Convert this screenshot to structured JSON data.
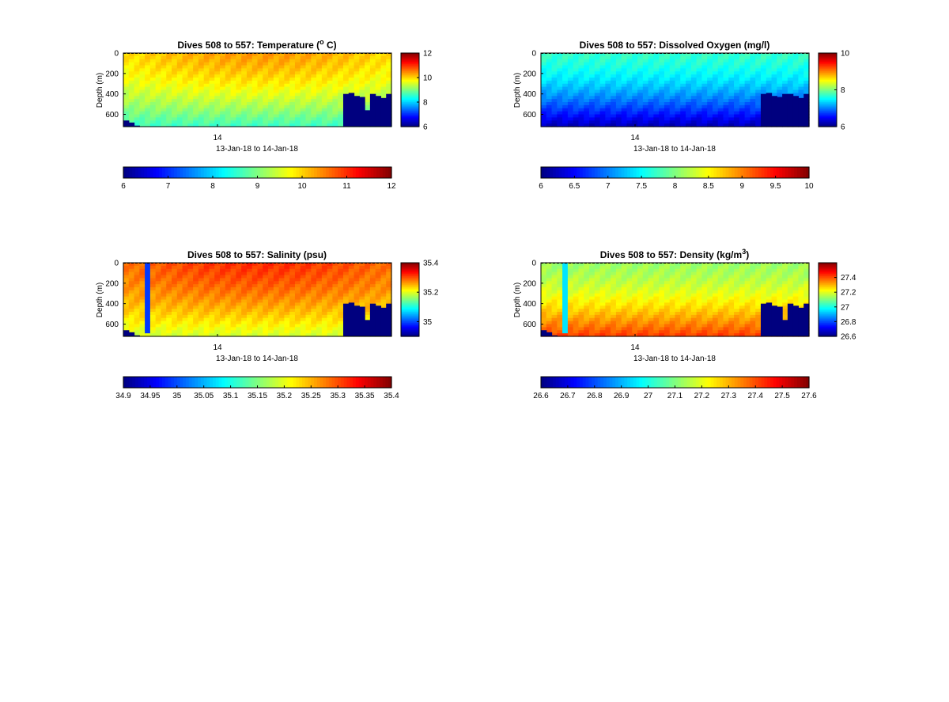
{
  "chart_data": [
    {
      "type": "heatmap",
      "title": "Dives 508 to 557: Temperature (",
      "title_sup": "o",
      "title_tail": " C)",
      "ylabel": "Depth (m)",
      "xlabel": "13-Jan-18 to 14-Jan-18",
      "x_tick_labels": [
        "14"
      ],
      "y_ticks": [
        0,
        200,
        400,
        600
      ],
      "ylim": [
        0,
        720
      ],
      "clim": [
        6,
        12
      ],
      "side_colorbar_ticks": [
        6,
        8,
        10,
        12
      ],
      "bottom_colorbar_ticks": [
        "6",
        "7",
        "8",
        "9",
        "10",
        "11",
        "12"
      ],
      "dives": 50,
      "field": {
        "surface": 9.9,
        "bottom": 8.6,
        "blob": 0.5
      },
      "bottom_mask_m": [
        660,
        680,
        710,
        720,
        720,
        720,
        720,
        720,
        720,
        720,
        720,
        720,
        720,
        720,
        720,
        720,
        720,
        720,
        720,
        720,
        720,
        720,
        720,
        720,
        720,
        720,
        720,
        720,
        720,
        720,
        720,
        720,
        720,
        720,
        720,
        720,
        720,
        720,
        720,
        720,
        720,
        400,
        390,
        420,
        430,
        560,
        400,
        420,
        440,
        400
      ],
      "strip_dives": []
    },
    {
      "type": "heatmap",
      "title": "Dives 508 to 557: Dissolved Oxygen (mg/l)",
      "title_sup": "",
      "title_tail": "",
      "ylabel": "Depth (m)",
      "xlabel": "13-Jan-18 to 14-Jan-18",
      "x_tick_labels": [
        "14"
      ],
      "y_ticks": [
        0,
        200,
        400,
        600
      ],
      "ylim": [
        0,
        720
      ],
      "clim": [
        6,
        10
      ],
      "side_colorbar_ticks": [
        6,
        8,
        10
      ],
      "bottom_colorbar_ticks": [
        "6",
        "6.5",
        "7",
        "7.5",
        "8",
        "8.5",
        "9",
        "9.5",
        "10"
      ],
      "dives": 50,
      "field": {
        "surface": 7.7,
        "bottom": 6.2,
        "blob": 0.0
      },
      "bottom_mask_m": [
        720,
        720,
        720,
        720,
        720,
        720,
        720,
        720,
        720,
        720,
        720,
        720,
        720,
        720,
        720,
        720,
        720,
        720,
        720,
        720,
        720,
        720,
        720,
        720,
        720,
        720,
        720,
        720,
        720,
        720,
        720,
        720,
        720,
        720,
        720,
        720,
        720,
        720,
        720,
        720,
        720,
        400,
        390,
        420,
        430,
        400,
        400,
        420,
        440,
        400
      ],
      "strip_dives": []
    },
    {
      "type": "heatmap",
      "title": "Dives 508 to 557: Salinity (psu)",
      "title_sup": "",
      "title_tail": "",
      "ylabel": "Depth (m)",
      "xlabel": "13-Jan-18 to 14-Jan-18",
      "x_tick_labels": [
        "14"
      ],
      "y_ticks": [
        0,
        200,
        400,
        600
      ],
      "ylim": [
        0,
        720
      ],
      "clim": [
        34.9,
        35.4
      ],
      "side_colorbar_ticks": [
        35,
        35.2,
        35.4
      ],
      "bottom_colorbar_ticks": [
        "34.9",
        "34.95",
        "35",
        "35.05",
        "35.1",
        "35.15",
        "35.2",
        "35.25",
        "35.3",
        "35.35",
        "35.4"
      ],
      "dives": 50,
      "field": {
        "surface": 35.28,
        "bottom": 35.19,
        "blob": 0.04
      },
      "bottom_mask_m": [
        660,
        680,
        710,
        720,
        720,
        720,
        720,
        720,
        720,
        720,
        720,
        720,
        720,
        720,
        720,
        720,
        720,
        720,
        720,
        720,
        720,
        720,
        720,
        720,
        720,
        720,
        720,
        720,
        720,
        720,
        720,
        720,
        720,
        720,
        720,
        720,
        720,
        720,
        720,
        720,
        720,
        400,
        390,
        420,
        430,
        560,
        400,
        420,
        440,
        400
      ],
      "strip_dives": [
        {
          "dive": 4,
          "value": 34.99
        }
      ]
    },
    {
      "type": "heatmap",
      "title": "Dives 508 to 557: Density (kg/m",
      "title_sup": "3",
      "title_tail": ")",
      "ylabel": "Depth (m)",
      "xlabel": "13-Jan-18 to 14-Jan-18",
      "x_tick_labels": [
        "14"
      ],
      "y_ticks": [
        0,
        200,
        400,
        600
      ],
      "ylim": [
        0,
        720
      ],
      "clim": [
        26.6,
        27.6
      ],
      "side_colorbar_ticks": [
        26.6,
        26.8,
        27,
        27.2,
        27.4
      ],
      "bottom_colorbar_ticks": [
        "26.6",
        "26.7",
        "26.8",
        "26.9",
        "27",
        "27.1",
        "27.2",
        "27.3",
        "27.4",
        "27.5",
        "27.6"
      ],
      "dives": 50,
      "field": {
        "surface": 27.13,
        "bottom": 27.42,
        "blob": 0.0
      },
      "bottom_mask_m": [
        660,
        680,
        710,
        720,
        720,
        720,
        720,
        720,
        720,
        720,
        720,
        720,
        720,
        720,
        720,
        720,
        720,
        720,
        720,
        720,
        720,
        720,
        720,
        720,
        720,
        720,
        720,
        720,
        720,
        720,
        720,
        720,
        720,
        720,
        720,
        720,
        720,
        720,
        720,
        720,
        720,
        400,
        390,
        420,
        430,
        560,
        400,
        420,
        440,
        400
      ],
      "strip_dives": [
        {
          "dive": 4,
          "value": 26.95
        }
      ]
    }
  ]
}
